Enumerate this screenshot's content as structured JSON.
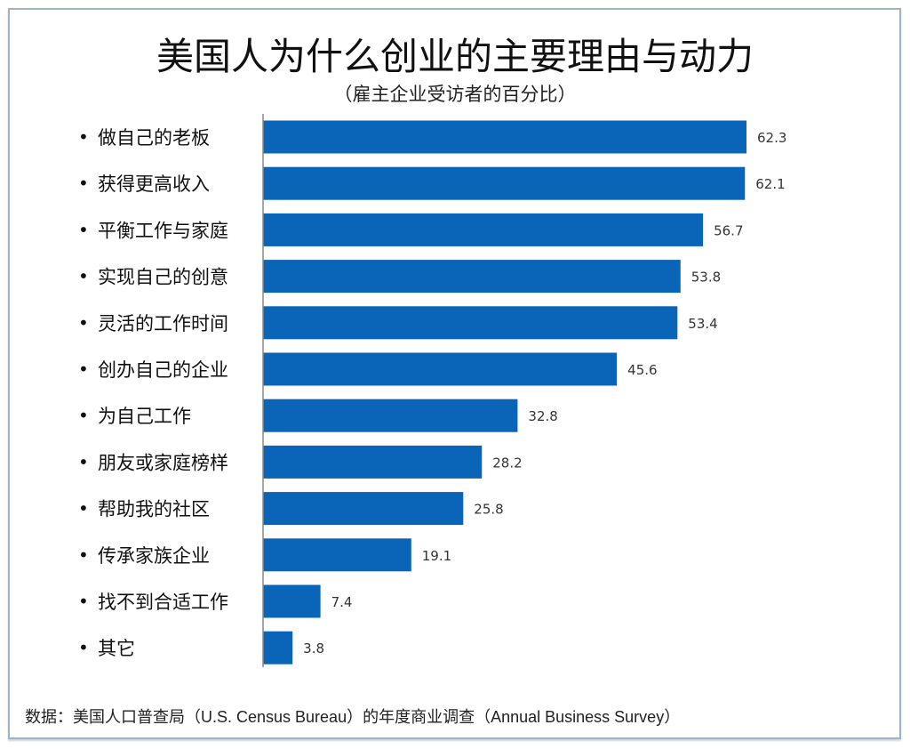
{
  "chart_data": {
    "type": "bar",
    "orientation": "horizontal",
    "title": "美国人为什么创业的主要理由与动力",
    "subtitle": "（雇主企业受访者的百分比）",
    "categories": [
      "做自己的老板",
      "获得更高收入",
      "平衡工作与家庭",
      "实现自己的创意",
      "灵活的工作时间",
      "创办自己的企业",
      "为自己工作",
      "朋友或家庭榜样",
      "帮助我的社区",
      "传承家族企业",
      "找不到合适工作",
      "其它"
    ],
    "values": [
      62.3,
      62.1,
      56.7,
      53.8,
      53.4,
      45.6,
      32.8,
      28.2,
      25.8,
      19.1,
      7.4,
      3.8
    ],
    "value_labels": [
      "62.3",
      "62.1",
      "56.7",
      "53.8",
      "53.4",
      "45.6",
      "32.8",
      "28.2",
      "25.8",
      "19.1",
      "7.4",
      "3.8"
    ],
    "xlim": [
      0,
      62.3
    ],
    "grid": false,
    "bar_color": "#0a64b8",
    "source": "数据：美国人口普查局（U.S. Census Bureau）的年度商业调查（Annual Business Survey）"
  }
}
